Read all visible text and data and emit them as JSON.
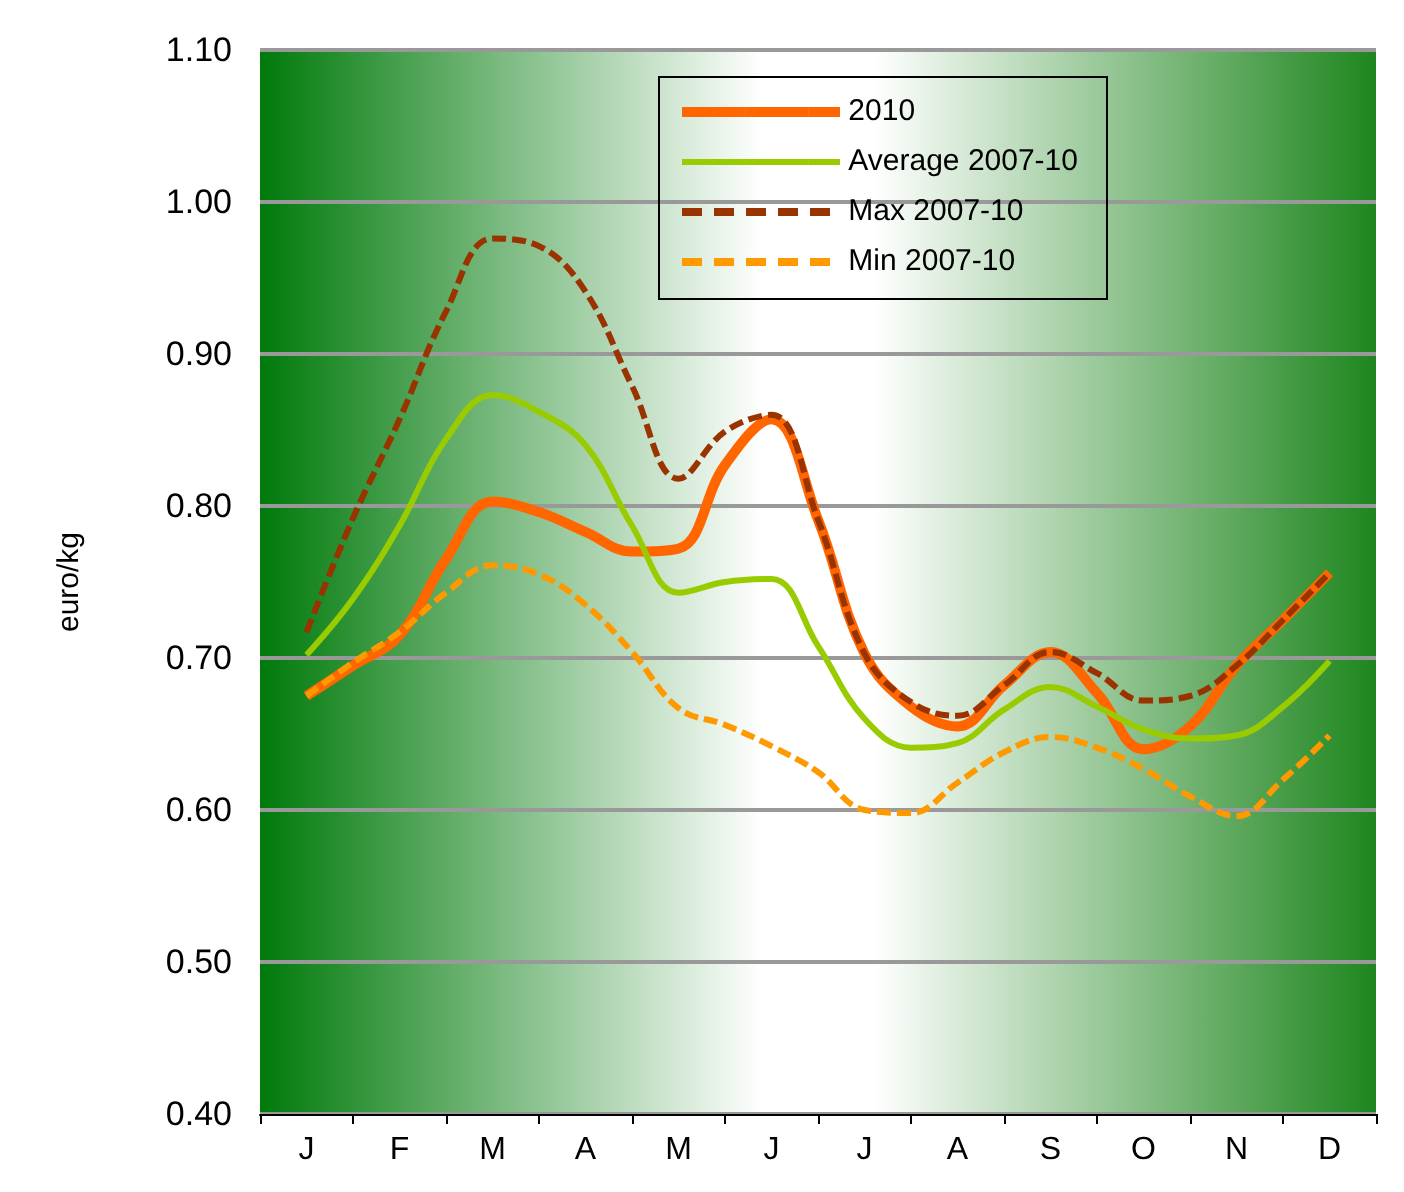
{
  "chart_data": {
    "type": "line",
    "ylabel": "euro/kg",
    "categories": [
      null,
      "J",
      null,
      "F",
      null,
      "M",
      null,
      "A",
      null,
      "M",
      null,
      "J",
      null,
      "J",
      null,
      "A",
      null,
      "S",
      null,
      "O",
      null,
      "N",
      null,
      "D",
      null
    ],
    "series": [
      {
        "name": "2010",
        "color": "#ff6600",
        "values": [
          null,
          0.675,
          0.695,
          0.715,
          0.765,
          0.803,
          0.796,
          0.783,
          0.77,
          0.772,
          0.827,
          0.857,
          0.791,
          0.703,
          0.668,
          0.655,
          0.682,
          0.704,
          0.677,
          0.64,
          0.655,
          0.695,
          0.725,
          0.756,
          null
        ]
      },
      {
        "name": "Average 2007-10",
        "color": "#99cc00",
        "values": [
          null,
          0.702,
          0.739,
          0.787,
          0.844,
          0.873,
          0.862,
          0.84,
          0.787,
          0.743,
          0.75,
          0.752,
          0.708,
          0.66,
          0.641,
          0.644,
          0.666,
          0.681,
          0.668,
          0.653,
          0.647,
          0.649,
          0.668,
          0.698,
          null
        ]
      },
      {
        "name": "Max 2007-10",
        "color": "#993300",
        "line_style": "dashed",
        "values": [
          null,
          0.717,
          0.792,
          0.857,
          0.928,
          0.976,
          0.971,
          0.941,
          0.879,
          0.818,
          0.849,
          0.86,
          0.791,
          0.703,
          0.671,
          0.662,
          0.682,
          0.704,
          0.69,
          0.672,
          0.675,
          0.695,
          0.725,
          0.756,
          null
        ]
      },
      {
        "name": "Min 2007-10",
        "color": "#ff9900",
        "line_style": "dashed",
        "values": [
          null,
          0.675,
          0.697,
          0.717,
          0.743,
          0.761,
          0.755,
          0.735,
          0.704,
          0.667,
          0.656,
          0.642,
          0.625,
          0.6,
          0.598,
          0.618,
          0.638,
          0.648,
          0.641,
          0.627,
          0.609,
          0.596,
          0.62,
          0.649,
          null
        ]
      }
    ],
    "ylim": [
      0.4,
      1.1
    ],
    "yticks": [
      {
        "value": 0.4,
        "label": "0.40"
      },
      {
        "value": 0.5,
        "label": "0.50"
      },
      {
        "value": 0.6,
        "label": "0.60"
      },
      {
        "value": 0.7,
        "label": "0.70"
      },
      {
        "value": 0.8,
        "label": "0.80"
      },
      {
        "value": 0.9,
        "label": "0.90"
      },
      {
        "value": 1.0,
        "label": "1.00"
      },
      {
        "value": 1.1,
        "label": "1.10"
      }
    ],
    "grid": "y",
    "legend": "top right",
    "marker": "none",
    "line_style": "solid"
  }
}
